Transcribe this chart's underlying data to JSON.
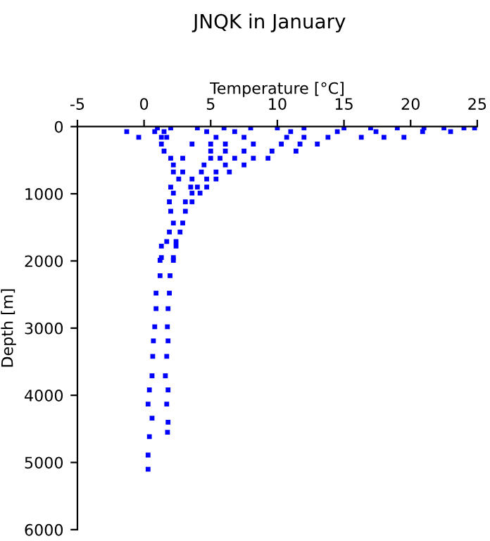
{
  "chart_data": {
    "type": "scatter",
    "title": "JNQK in January",
    "xlabel": "Temperature [°C]",
    "ylabel": "Depth [m]",
    "xlim": [
      -5,
      25
    ],
    "xticks": [
      -5,
      0,
      5,
      10,
      15,
      20,
      25
    ],
    "ylim": [
      6000,
      0
    ],
    "yticks": [
      0,
      1000,
      2000,
      3000,
      4000,
      5000,
      6000
    ],
    "marker": "square",
    "grid": false,
    "series": [
      {
        "color": "#0000ff",
        "x": [
          1,
          2,
          4,
          6,
          8,
          10,
          12,
          15,
          17,
          19,
          21,
          22.5,
          24,
          24.8,
          -1.3,
          0.8,
          1.5,
          4.7,
          6.8,
          11,
          14.5,
          17.4,
          20.9,
          23,
          -0.4,
          1.3,
          1.7,
          5.4,
          7.5,
          10.7,
          12,
          13.8,
          16.3,
          18,
          19.5,
          1.3,
          3.6,
          5,
          6.1,
          8.2,
          10.3,
          11.7,
          13,
          1.5,
          5,
          6.1,
          7.5,
          9.6,
          11.4,
          2,
          2.9,
          5,
          5.7,
          6.8,
          8.2,
          9.3,
          2.2,
          4.5,
          6.1,
          7.5,
          2.2,
          2.9,
          4.3,
          5.4,
          6.4,
          2.6,
          3.6,
          4.7,
          5.4,
          2,
          3.5,
          4,
          4.7,
          2.2,
          3.6,
          4.2,
          1.9,
          3.1,
          3.6,
          2,
          3.1,
          2.2,
          2.9,
          1.9,
          2.7,
          1.7,
          2.4,
          1.3,
          2.4,
          1.3,
          2.2,
          1.2,
          2.2,
          1.2,
          1.95,
          0.9,
          1.9,
          0.9,
          1.8,
          0.8,
          1.75,
          0.7,
          1.8,
          0.65,
          1.7,
          0.6,
          1.6,
          0.4,
          1.8,
          0.3,
          1.7,
          0.6,
          1.8,
          1.76,
          0.4,
          0.3,
          0.3
        ],
        "values": [
          20,
          20,
          20,
          20,
          20,
          20,
          20,
          20,
          20,
          20,
          20,
          20,
          20,
          20,
          75,
          75,
          75,
          75,
          75,
          75,
          75,
          75,
          75,
          75,
          160,
          160,
          160,
          160,
          160,
          160,
          160,
          160,
          160,
          160,
          160,
          260,
          260,
          260,
          260,
          260,
          260,
          260,
          260,
          365,
          365,
          365,
          365,
          365,
          365,
          470,
          470,
          470,
          470,
          470,
          470,
          470,
          570,
          570,
          570,
          570,
          675,
          675,
          675,
          675,
          675,
          780,
          780,
          780,
          780,
          900,
          900,
          900,
          900,
          990,
          990,
          990,
          1120,
          1120,
          1120,
          1260,
          1260,
          1435,
          1435,
          1570,
          1570,
          1710,
          1710,
          1780,
          1780,
          1950,
          1950,
          1990,
          1990,
          2220,
          2220,
          2480,
          2480,
          2710,
          2710,
          2980,
          2980,
          3190,
          3190,
          3420,
          3420,
          3710,
          3710,
          3920,
          3920,
          4130,
          4130,
          4340,
          4400,
          4550,
          4615,
          4890,
          5100
        ]
      }
    ]
  }
}
